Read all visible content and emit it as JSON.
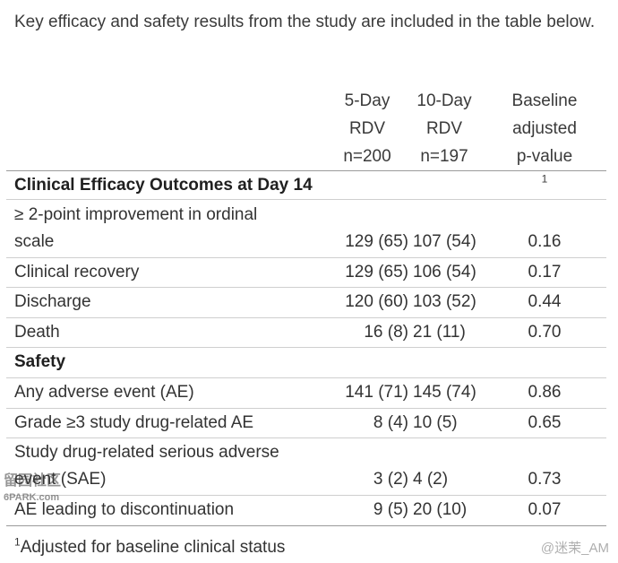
{
  "intro_text": "Key efficacy and safety results from the study are included in the table below.",
  "columns": {
    "c1": [
      "5-Day",
      "RDV",
      "n=200"
    ],
    "c2": [
      "10-Day",
      "RDV",
      "n=197"
    ],
    "c3": [
      "Baseline",
      "adjusted",
      "p-value"
    ],
    "c3_sup": "1"
  },
  "sections": {
    "efficacy": "Clinical Efficacy Outcomes at Day 14",
    "safety": "Safety"
  },
  "rows": [
    {
      "label_l1": "≥ 2-point improvement in ordinal",
      "label_l2": "scale",
      "v1": "129 (65)",
      "v2": "107 (54)",
      "p": "0.16"
    },
    {
      "label": "Clinical recovery",
      "v1": "129 (65)",
      "v2": "106 (54)",
      "p": "0.17"
    },
    {
      "label": "Discharge",
      "v1": "120 (60)",
      "v2": "103 (52)",
      "p": "0.44"
    },
    {
      "label": "Death",
      "v1": "16 (8)",
      "v2": "21 (11)",
      "p": "0.70"
    },
    {
      "label": "Any adverse event (AE)",
      "v1": "141 (71)",
      "v2": "145 (74)",
      "p": "0.86"
    },
    {
      "label": "Grade ≥3 study drug-related AE",
      "v1": "8 (4)",
      "v2": "10 (5)",
      "p": "0.65"
    },
    {
      "label_l1": "Study drug-related serious adverse",
      "label_l2": "event (SAE)",
      "v1": "3 (2)",
      "v2": "4 (2)",
      "p": "0.73"
    },
    {
      "label": "AE leading to discontinuation",
      "v1": "9 (5)",
      "v2": "20 (10)",
      "p": "0.07"
    }
  ],
  "footnote": {
    "sup": "1",
    "text": "Adjusted for baseline clinical status"
  },
  "watermarks": {
    "left_top": "留园社区",
    "left_bottom": "6PARK.com",
    "right": "@迷茉_AM"
  }
}
